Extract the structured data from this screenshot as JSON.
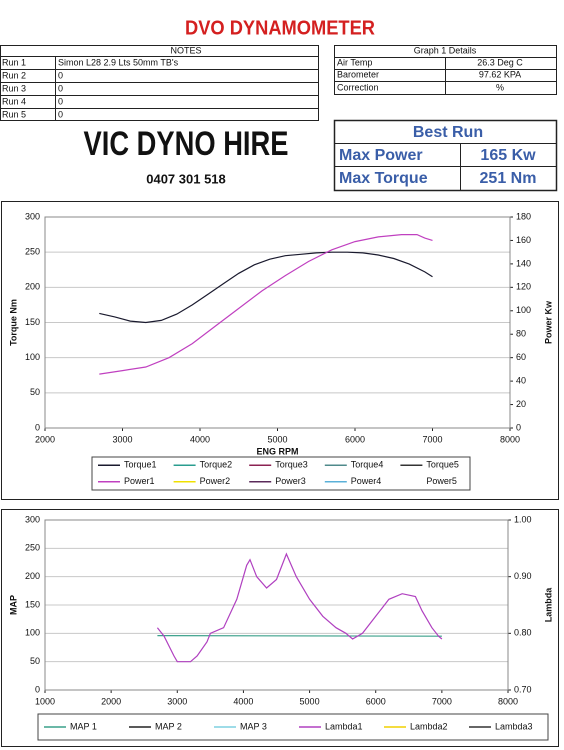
{
  "header": {
    "title": "DVO DYNAMOMETER"
  },
  "notes_table": {
    "header": "NOTES",
    "rows": [
      [
        "Run 1",
        "Simon L28  2.9 Lts 50mm TB's"
      ],
      [
        "Run 2",
        "0"
      ],
      [
        "Run 3",
        "0"
      ],
      [
        "Run 4",
        "0"
      ],
      [
        "Run 5",
        "0"
      ]
    ]
  },
  "details_table": {
    "header": "Graph 1 Details",
    "rows": [
      [
        "Air Temp",
        "26.3 Deg C"
      ],
      [
        "Barometer",
        "97.62 KPA"
      ],
      [
        "Correction",
        "%"
      ]
    ]
  },
  "branding": {
    "name": "VIC DYNO HIRE",
    "phone": "0407 301 518"
  },
  "best_run": {
    "header": "Best Run",
    "rows": [
      [
        "Max Power",
        "165 Kw"
      ],
      [
        "Max Torque",
        "251 Nm"
      ]
    ]
  },
  "chart_data": [
    {
      "type": "line",
      "x_label": "ENG RPM",
      "y_label": "Torque Nm",
      "y2_label": "Power Kw",
      "xlim": [
        2000,
        8000
      ],
      "xticks": [
        2000,
        3000,
        4000,
        5000,
        6000,
        7000,
        8000
      ],
      "ylim": [
        0,
        300
      ],
      "yticks": [
        0,
        50,
        100,
        150,
        200,
        250,
        300
      ],
      "y2lim": [
        0,
        180
      ],
      "y2ticks": [
        0,
        20,
        40,
        60,
        80,
        100,
        120,
        140,
        160,
        180
      ],
      "grid": true,
      "legend": "bottom",
      "series": [
        {
          "name": "Torque1",
          "color": "#1a1a2e",
          "x": [
            2700,
            2900,
            3100,
            3300,
            3500,
            3700,
            3900,
            4100,
            4300,
            4500,
            4700,
            4900,
            5100,
            5300,
            5500,
            5700,
            5900,
            6100,
            6300,
            6500,
            6700,
            6900,
            7000
          ],
          "values": [
            163,
            158,
            152,
            150,
            153,
            162,
            175,
            190,
            205,
            220,
            232,
            240,
            245,
            247,
            249,
            250,
            250,
            249,
            246,
            241,
            233,
            222,
            215
          ]
        },
        {
          "name": "Torque2",
          "color": "#2a9d8f",
          "x": [],
          "values": []
        },
        {
          "name": "Torque3",
          "color": "#8b2252",
          "x": [],
          "values": []
        },
        {
          "name": "Torque4",
          "color": "#4f8a8b",
          "x": [],
          "values": []
        },
        {
          "name": "Torque5",
          "color": "#333333",
          "x": [],
          "values": []
        },
        {
          "name": "Power1",
          "color": "#c040c0",
          "axis": "y2",
          "x": [
            2700,
            3000,
            3300,
            3600,
            3900,
            4200,
            4500,
            4800,
            5100,
            5400,
            5700,
            6000,
            6300,
            6600,
            6800,
            6900,
            7000
          ],
          "values": [
            46,
            49,
            52,
            60,
            72,
            87,
            102,
            117,
            130,
            142,
            152,
            159,
            163,
            165,
            165,
            162,
            160
          ]
        },
        {
          "name": "Power2",
          "color": "#f0e000",
          "axis": "y2",
          "x": [],
          "values": []
        },
        {
          "name": "Power3",
          "color": "#5a2a5a",
          "axis": "y2",
          "x": [],
          "values": []
        },
        {
          "name": "Power4",
          "color": "#5ab0d8",
          "axis": "y2",
          "x": [],
          "values": []
        },
        {
          "name": "Power5",
          "color": "#ffffff",
          "axis": "y2",
          "x": [],
          "values": []
        }
      ]
    },
    {
      "type": "line",
      "y_label": "MAP",
      "y2_label": "Lambda",
      "xlim": [
        1000,
        8000
      ],
      "xticks": [
        1000,
        2000,
        3000,
        4000,
        5000,
        6000,
        7000,
        8000
      ],
      "ylim": [
        0,
        300
      ],
      "yticks": [
        0,
        50,
        100,
        150,
        200,
        250,
        300
      ],
      "y2lim": [
        0.7,
        1.0
      ],
      "y2ticks": [
        {
          "value": 0.7,
          "label": "0.70"
        },
        {
          "value": 0.8,
          "label": "0.80"
        },
        {
          "value": 0.9,
          "label": "0.90"
        },
        {
          "value": 1.0,
          "label": "1.00"
        }
      ],
      "grid": true,
      "legend": "bottom",
      "series": [
        {
          "name": "MAP 1",
          "color": "#3aa08a",
          "x": [
            2700,
            7000
          ],
          "values": [
            96,
            95
          ]
        },
        {
          "name": "MAP 2",
          "color": "#222222",
          "x": [],
          "values": []
        },
        {
          "name": "MAP 3",
          "color": "#7fd0e0",
          "x": [],
          "values": []
        },
        {
          "name": "Lambda1",
          "color": "#b040c0",
          "axis": "y2",
          "x": [
            2700,
            2800,
            2950,
            3000,
            3200,
            3300,
            3450,
            3500,
            3700,
            3900,
            4050,
            4100,
            4200,
            4350,
            4500,
            4650,
            4800,
            5000,
            5200,
            5400,
            5550,
            5650,
            5800,
            6000,
            6200,
            6400,
            6600,
            6700,
            6850,
            6950,
            7000
          ],
          "values": [
            0.81,
            0.795,
            0.76,
            0.75,
            0.75,
            0.76,
            0.785,
            0.8,
            0.81,
            0.86,
            0.92,
            0.93,
            0.9,
            0.88,
            0.895,
            0.94,
            0.9,
            0.86,
            0.83,
            0.81,
            0.8,
            0.79,
            0.8,
            0.83,
            0.86,
            0.87,
            0.865,
            0.84,
            0.81,
            0.795,
            0.79
          ]
        },
        {
          "name": "Lambda2",
          "color": "#f0d000",
          "axis": "y2",
          "x": [],
          "values": []
        },
        {
          "name": "Lambda3",
          "color": "#333333",
          "axis": "y2",
          "x": [],
          "values": []
        }
      ]
    }
  ]
}
